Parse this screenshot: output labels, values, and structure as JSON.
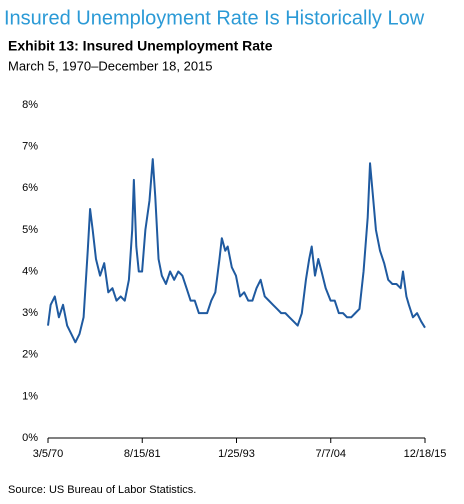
{
  "chart_data": {
    "type": "line",
    "headline": "Insured Unemployment Rate Is Historically Low",
    "title": "Exhibit 13: Insured Unemployment Rate",
    "subtitle": "March 5, 1970–December 18, 2015",
    "source": "Source: US Bureau of Labor Statistics.",
    "color": "#1f5aa0",
    "grid": false,
    "x": [
      "1970-03-05",
      "1970-07-01",
      "1971-01-01",
      "1971-07-01",
      "1972-01-01",
      "1972-07-01",
      "1973-01-01",
      "1973-07-01",
      "1974-01-01",
      "1974-07-01",
      "1975-01-01",
      "1975-04-15",
      "1975-08-08",
      "1976-01-01",
      "1976-07-01",
      "1977-01-01",
      "1977-07-01",
      "1978-01-01",
      "1978-07-01",
      "1979-01-01",
      "1979-07-01",
      "1980-01-01",
      "1980-05-26",
      "1980-08-08",
      "1980-11-24",
      "1981-03-15",
      "1981-08-08",
      "1982-01-01",
      "1982-07-01",
      "1982-11-24",
      "1983-03-15",
      "1983-08-08",
      "1984-01-01",
      "1984-07-01",
      "1985-01-01",
      "1985-07-01",
      "1986-01-01",
      "1986-07-01",
      "1987-01-01",
      "1987-07-01",
      "1988-01-01",
      "1988-07-01",
      "1989-01-01",
      "1989-07-01",
      "1990-01-01",
      "1990-07-01",
      "1991-01-01",
      "1991-04-15",
      "1991-09-15",
      "1992-01-01",
      "1992-07-01",
      "1993-01-01",
      "1993-07-01",
      "1994-01-01",
      "1994-07-01",
      "1995-01-01",
      "1995-07-01",
      "1996-01-01",
      "1996-07-01",
      "1997-01-01",
      "1997-07-01",
      "1998-01-01",
      "1998-07-01",
      "1999-01-01",
      "1999-07-01",
      "2000-01-01",
      "2000-07-01",
      "2001-01-01",
      "2001-07-01",
      "2001-11-24",
      "2002-03-15",
      "2002-08-08",
      "2003-01-01",
      "2003-05-26",
      "2003-11-24",
      "2004-07-01",
      "2005-01-01",
      "2005-07-01",
      "2006-01-01",
      "2006-07-01",
      "2007-01-01",
      "2007-07-01",
      "2008-01-01",
      "2008-07-01",
      "2009-01-01",
      "2009-04-15",
      "2009-08-08",
      "2010-01-01",
      "2010-07-01",
      "2011-01-01",
      "2011-07-01",
      "2012-01-01",
      "2012-07-01",
      "2013-01-01",
      "2013-04-15",
      "2013-09-15",
      "2014-01-01",
      "2014-07-01",
      "2015-01-01",
      "2015-07-01",
      "2015-12-18"
    ],
    "values": [
      2.7,
      3.2,
      3.4,
      2.9,
      3.2,
      2.7,
      2.5,
      2.3,
      2.5,
      2.9,
      4.5,
      5.5,
      5.0,
      4.3,
      3.9,
      4.2,
      3.5,
      3.6,
      3.3,
      3.4,
      3.3,
      3.8,
      5.0,
      6.2,
      4.6,
      4.0,
      4.0,
      5.0,
      5.7,
      6.7,
      5.8,
      4.3,
      3.9,
      3.7,
      4.0,
      3.8,
      4.0,
      3.9,
      3.6,
      3.3,
      3.3,
      3.0,
      3.0,
      3.0,
      3.3,
      3.5,
      4.3,
      4.8,
      4.5,
      4.6,
      4.1,
      3.9,
      3.4,
      3.5,
      3.3,
      3.3,
      3.6,
      3.8,
      3.4,
      3.3,
      3.2,
      3.1,
      3.0,
      3.0,
      2.9,
      2.8,
      2.7,
      3.0,
      3.8,
      4.3,
      4.6,
      3.9,
      4.3,
      4.0,
      3.6,
      3.3,
      3.3,
      3.0,
      3.0,
      2.9,
      2.9,
      3.0,
      3.1,
      4.0,
      5.3,
      6.6,
      5.9,
      5.0,
      4.5,
      4.2,
      3.8,
      3.7,
      3.7,
      3.6,
      4.0,
      3.4,
      3.2,
      2.9,
      3.0,
      2.8,
      2.65
    ],
    "xlim": [
      "1970-03-05",
      "2015-12-18"
    ],
    "xticks": [
      {
        "value": "1970-03-05",
        "label": "3/5/70"
      },
      {
        "value": "1981-08-15",
        "label": "8/15/81"
      },
      {
        "value": "1993-01-25",
        "label": "1/25/93"
      },
      {
        "value": "2004-07-07",
        "label": "7/7/04"
      },
      {
        "value": "2015-12-18",
        "label": "12/18/15"
      }
    ],
    "ylim": [
      0,
      8
    ],
    "yticks": [
      {
        "value": 0,
        "label": "0%"
      },
      {
        "value": 1,
        "label": "1%"
      },
      {
        "value": 2,
        "label": "2%"
      },
      {
        "value": 3,
        "label": "3%"
      },
      {
        "value": 4,
        "label": "4%"
      },
      {
        "value": 5,
        "label": "5%"
      },
      {
        "value": 6,
        "label": "6%"
      },
      {
        "value": 7,
        "label": "7%"
      },
      {
        "value": 8,
        "label": "8%"
      }
    ]
  }
}
